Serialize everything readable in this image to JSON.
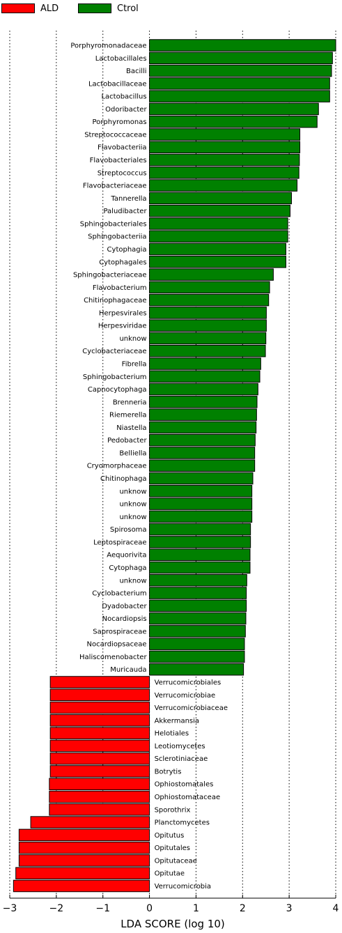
{
  "chart_data": {
    "type": "bar",
    "orientation": "horizontal",
    "xlabel": "LDA SCORE (log 10)",
    "xlim": [
      -3,
      4
    ],
    "xticks": [
      -3,
      -2,
      -1,
      0,
      1,
      2,
      3,
      4
    ],
    "grid": "vertical dotted lines at each x tick",
    "legend": {
      "placement": "top-left",
      "entries": [
        {
          "name": "ALD",
          "color": "#ff0000"
        },
        {
          "name": "Ctrol",
          "color": "#008000"
        }
      ]
    },
    "categories": [
      "Porphyromonadaceae",
      "Lactobacillales",
      "Bacilli",
      "Lactobacillaceae",
      "Lactobacillus",
      "Odoribacter",
      "Porphyromonas",
      "Streptococcaceae",
      "Flavobacteriia",
      "Flavobacteriales",
      "Streptococcus",
      "Flavobacteriaceae",
      "Tannerella",
      "Paludibacter",
      "Sphingobacteriales",
      "Sphingobacteriia",
      "Cytophagia",
      "Cytophagales",
      "Sphingobacteriaceae",
      "Flavobacterium",
      "Chitinophagaceae",
      "Herpesvirales",
      "Herpesviridae",
      "unknow",
      "Cyclobacteriaceae",
      "Fibrella",
      "Sphingobacterium",
      "Capnocytophaga",
      "Brenneria",
      "Riemerella",
      "Niastella",
      "Pedobacter",
      "Belliella",
      "Cryomorphaceae",
      "Chitinophaga",
      "unknow",
      "unknow",
      "unknow",
      "Spirosoma",
      "Leptospiraceae",
      "Aequorivita",
      "Cytophaga",
      "unknow",
      "Cyclobacterium",
      "Dyadobacter",
      "Nocardiopsis",
      "Saprospiraceae",
      "Nocardiopsaceae",
      "Haliscomenobacter",
      "Muricauda",
      "Verrucomicrobiales",
      "Verrucomicrobiae",
      "Verrucomicrobiaceae",
      "Akkermansia",
      "Helotiales",
      "Leotiomycetes",
      "Sclerotiniaceae",
      "Botrytis",
      "Ophiostomatales",
      "Ophiostomataceae",
      "Sporothrix",
      "Planctomycetes",
      "Opitutus",
      "Opitutales",
      "Opitutaceae",
      "Opitutae",
      "Verrucomicrobia"
    ],
    "values": [
      4.0,
      3.93,
      3.91,
      3.87,
      3.87,
      3.63,
      3.6,
      3.23,
      3.23,
      3.22,
      3.21,
      3.17,
      3.05,
      3.02,
      2.97,
      2.97,
      2.93,
      2.93,
      2.66,
      2.58,
      2.56,
      2.51,
      2.51,
      2.5,
      2.49,
      2.39,
      2.37,
      2.33,
      2.31,
      2.3,
      2.29,
      2.27,
      2.26,
      2.26,
      2.22,
      2.2,
      2.2,
      2.2,
      2.17,
      2.17,
      2.16,
      2.16,
      2.09,
      2.08,
      2.08,
      2.07,
      2.06,
      2.04,
      2.04,
      2.02,
      -2.13,
      -2.13,
      -2.13,
      -2.13,
      -2.13,
      -2.13,
      -2.13,
      -2.13,
      -2.15,
      -2.15,
      -2.15,
      -2.55,
      -2.8,
      -2.8,
      -2.8,
      -2.87,
      -2.92
    ],
    "groups": [
      "Ctrol",
      "Ctrol",
      "Ctrol",
      "Ctrol",
      "Ctrol",
      "Ctrol",
      "Ctrol",
      "Ctrol",
      "Ctrol",
      "Ctrol",
      "Ctrol",
      "Ctrol",
      "Ctrol",
      "Ctrol",
      "Ctrol",
      "Ctrol",
      "Ctrol",
      "Ctrol",
      "Ctrol",
      "Ctrol",
      "Ctrol",
      "Ctrol",
      "Ctrol",
      "Ctrol",
      "Ctrol",
      "Ctrol",
      "Ctrol",
      "Ctrol",
      "Ctrol",
      "Ctrol",
      "Ctrol",
      "Ctrol",
      "Ctrol",
      "Ctrol",
      "Ctrol",
      "Ctrol",
      "Ctrol",
      "Ctrol",
      "Ctrol",
      "Ctrol",
      "Ctrol",
      "Ctrol",
      "Ctrol",
      "Ctrol",
      "Ctrol",
      "Ctrol",
      "Ctrol",
      "Ctrol",
      "Ctrol",
      "Ctrol",
      "ALD",
      "ALD",
      "ALD",
      "ALD",
      "ALD",
      "ALD",
      "ALD",
      "ALD",
      "ALD",
      "ALD",
      "ALD",
      "ALD",
      "ALD",
      "ALD",
      "ALD",
      "ALD",
      "ALD"
    ]
  }
}
